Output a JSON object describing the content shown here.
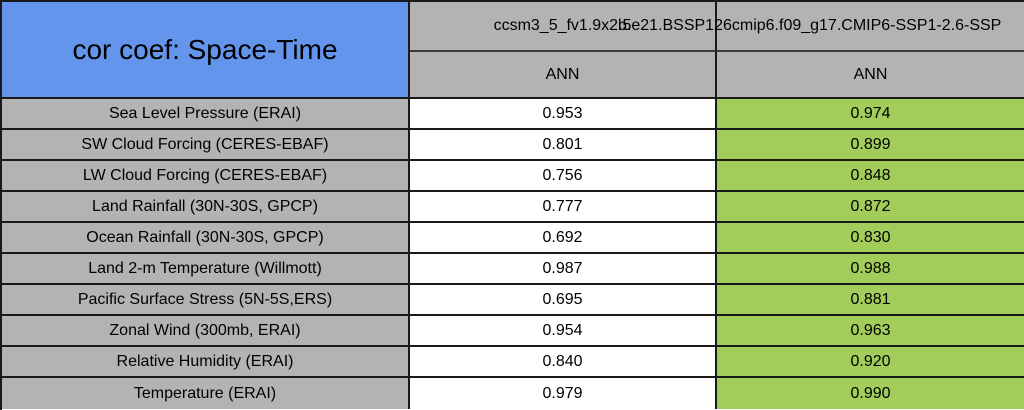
{
  "title": "cor coef: Space-Time",
  "header": {
    "model1": "ccsm3_5_fv1.9x2.5",
    "model2": "b.e21.BSSP126cmip6.f09_g17.CMIP6-SSP1-2.6-SSP",
    "season1": "ANN",
    "season2": "ANN"
  },
  "colors": {
    "title-bg": "#6495ED",
    "header-bg": "#B3B3B3",
    "label-bg": "#B3B3B3",
    "value1-bg": "#FFFFFF",
    "value2-bg": "#A2CD5A",
    "grid-line": "#1A1A1A",
    "text": "#000000"
  },
  "rows": [
    {
      "label": "Sea Level Pressure (ERAI)",
      "model1": "0.953",
      "model2": "0.974"
    },
    {
      "label": "SW Cloud Forcing (CERES-EBAF)",
      "model1": "0.801",
      "model2": "0.899"
    },
    {
      "label": "LW Cloud Forcing (CERES-EBAF)",
      "model1": "0.756",
      "model2": "0.848"
    },
    {
      "label": "Land Rainfall (30N-30S, GPCP)",
      "model1": "0.777",
      "model2": "0.872"
    },
    {
      "label": "Ocean Rainfall (30N-30S, GPCP)",
      "model1": "0.692",
      "model2": "0.830"
    },
    {
      "label": "Land 2-m Temperature (Willmott)",
      "model1": "0.987",
      "model2": "0.988"
    },
    {
      "label": "Pacific Surface Stress (5N-5S,ERS)",
      "model1": "0.695",
      "model2": "0.881"
    },
    {
      "label": "Zonal Wind (300mb, ERAI)",
      "model1": "0.954",
      "model2": "0.963"
    },
    {
      "label": "Relative Humidity (ERAI)",
      "model1": "0.840",
      "model2": "0.920"
    },
    {
      "label": "Temperature (ERAI)",
      "model1": "0.979",
      "model2": "0.990"
    }
  ],
  "chart_data": {
    "type": "table",
    "title": "cor coef: Space-Time",
    "columns": [
      {
        "model": "ccsm3_5_fv1.9x2.5",
        "season": "ANN"
      },
      {
        "model": "b.e21.BSSP126cmip6.f09_g17.CMIP6-SSP1-2.6-SSP",
        "season": "ANN"
      }
    ],
    "rows": [
      {
        "variable": "Sea Level Pressure (ERAI)",
        "values": [
          0.953,
          0.974
        ]
      },
      {
        "variable": "SW Cloud Forcing (CERES-EBAF)",
        "values": [
          0.801,
          0.899
        ]
      },
      {
        "variable": "LW Cloud Forcing (CERES-EBAF)",
        "values": [
          0.756,
          0.848
        ]
      },
      {
        "variable": "Land Rainfall (30N-30S, GPCP)",
        "values": [
          0.777,
          0.872
        ]
      },
      {
        "variable": "Ocean Rainfall (30N-30S, GPCP)",
        "values": [
          0.692,
          0.83
        ]
      },
      {
        "variable": "Land 2-m Temperature (Willmott)",
        "values": [
          0.987,
          0.988
        ]
      },
      {
        "variable": "Pacific Surface Stress (5N-5S,ERS)",
        "values": [
          0.695,
          0.881
        ]
      },
      {
        "variable": "Zonal Wind (300mb, ERAI)",
        "values": [
          0.954,
          0.963
        ]
      },
      {
        "variable": "Relative Humidity (ERAI)",
        "values": [
          0.84,
          0.92
        ]
      },
      {
        "variable": "Temperature (ERAI)",
        "values": [
          0.979,
          0.99
        ]
      }
    ],
    "layout_hints": {
      "second_model_column_shaded": "#A2CD5A",
      "second_model_header_text_clipped_at_right_edge": true,
      "value_range": [
        0,
        1
      ]
    }
  }
}
